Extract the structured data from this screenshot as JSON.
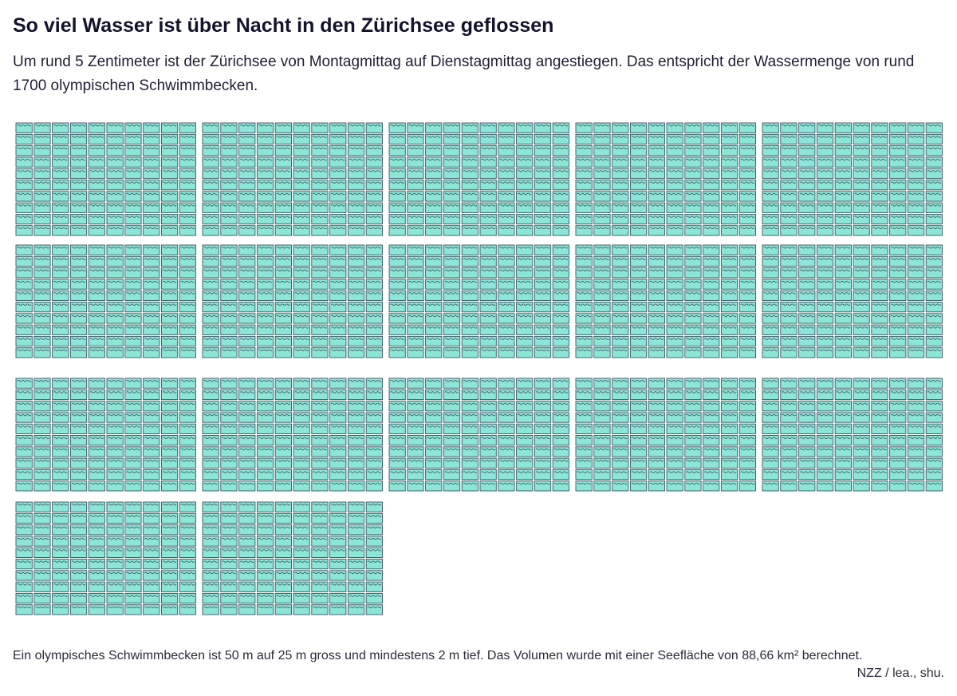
{
  "header": {
    "title": "So viel Wasser ist über Nacht in den Zürichsee geflossen",
    "subtitle": "Um rund 5 Zentimeter ist der Zürichsee von Montagmittag auf Dienstagmittag angestiegen. Das entspricht der Wassermenge von rund 1700 olympischen Schwimmbecken."
  },
  "footer": {
    "note": "Ein olympisches Schwimmbecken ist 50 m auf 25 m gross und mindestens 2 m tief. Das Volumen wurde mit einer Seefläche von 88,66 km² berechnet.",
    "source": "NZZ / lea., shu."
  },
  "chart_data": {
    "type": "unit",
    "unit": "olympic swimming pool",
    "total_units": 1700,
    "units_per_block": 100,
    "block_grid": "10 columns × 10 rows",
    "blocks_per_row": 5,
    "full_blocks": 17,
    "remainder_units": 0,
    "colors": {
      "pool_fill": "#8ce6d7",
      "pool_stroke": "#3b5560",
      "wave": "#3b5560"
    }
  }
}
